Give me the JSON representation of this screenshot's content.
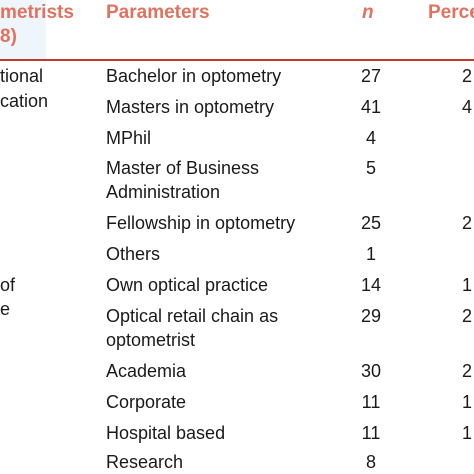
{
  "headers": {
    "col1_line1": "metrists",
    "col1_line2": "8)",
    "parameters": "Parameters",
    "n": "n",
    "percent": "Perce"
  },
  "groups": {
    "education_line1": "tional",
    "education_line2": "cation",
    "practice_line1": "of",
    "practice_line2": "e"
  },
  "rows": [
    {
      "param": "Bachelor in optometry",
      "n": "27",
      "pct": "2"
    },
    {
      "param": "Masters in optometry",
      "n": "41",
      "pct": "4"
    },
    {
      "param": "MPhil",
      "n": "4",
      "pct": ""
    },
    {
      "param": "Master of Business",
      "param2": "Administration",
      "n": "5",
      "pct": ""
    },
    {
      "param": "Fellowship in optometry",
      "n": "25",
      "pct": "2"
    },
    {
      "param": "Others",
      "n": "1",
      "pct": ""
    },
    {
      "param": "Own optical practice",
      "n": "14",
      "pct": "1"
    },
    {
      "param": "Optical retail chain as",
      "param2": "optometrist",
      "n": "29",
      "pct": "2"
    },
    {
      "param": "Academia",
      "n": "30",
      "pct": "2"
    },
    {
      "param": "Corporate",
      "n": "11",
      "pct": "1"
    },
    {
      "param": "Hospital based",
      "n": "11",
      "pct": "1"
    },
    {
      "param": "Research",
      "n": "8",
      "pct": ""
    }
  ]
}
